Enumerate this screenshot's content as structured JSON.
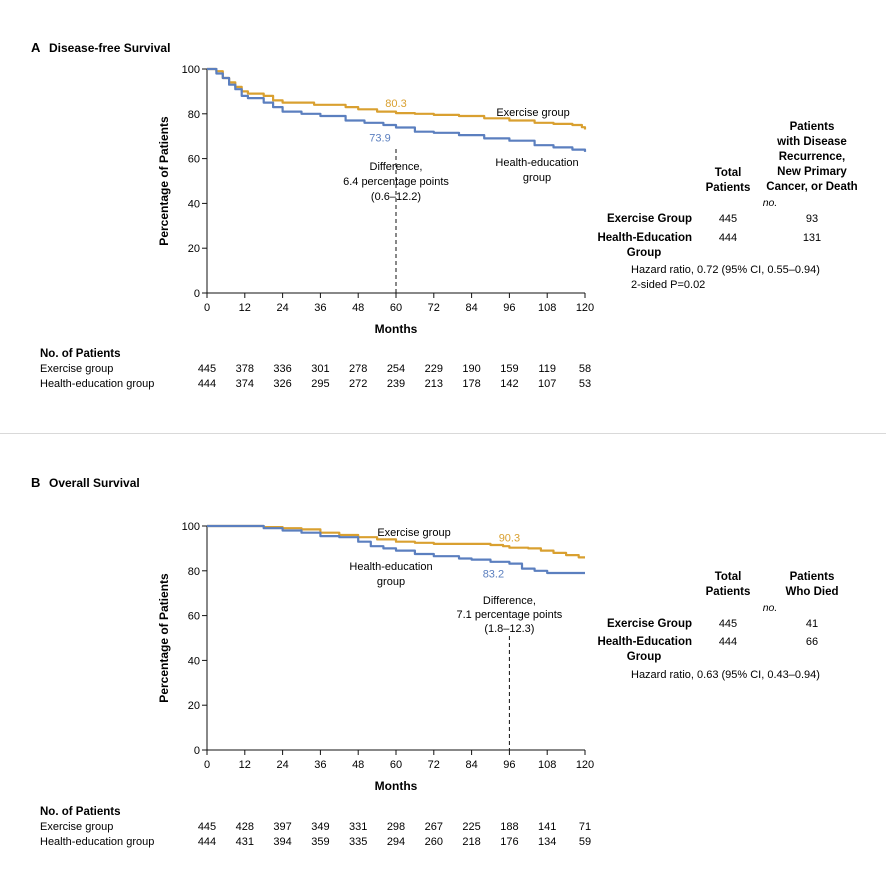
{
  "colors": {
    "exercise": "#D9A030",
    "health": "#5B7FBF",
    "axis": "#111111"
  },
  "chart_data": [
    {
      "type": "line",
      "panel_letter": "A",
      "title": "Disease-free Survival",
      "xlabel": "Months",
      "ylabel": "Percentage of Patients",
      "xlim": [
        0,
        120
      ],
      "ylim": [
        0,
        100
      ],
      "xticks": [
        0,
        12,
        24,
        36,
        48,
        60,
        72,
        84,
        96,
        108,
        120
      ],
      "yticks": [
        0,
        20,
        40,
        60,
        80,
        100
      ],
      "series": [
        {
          "name": "Exercise group",
          "color": "#D9A030",
          "points": [
            [
              0,
              100
            ],
            [
              3,
              99
            ],
            [
              5,
              96
            ],
            [
              7,
              94
            ],
            [
              9,
              92
            ],
            [
              11,
              90
            ],
            [
              13,
              89
            ],
            [
              18,
              88
            ],
            [
              21,
              86
            ],
            [
              24,
              85
            ],
            [
              30,
              85
            ],
            [
              34,
              84
            ],
            [
              44,
              83
            ],
            [
              48,
              82
            ],
            [
              54,
              81
            ],
            [
              60,
              80.3
            ],
            [
              66,
              80
            ],
            [
              72,
              79.5
            ],
            [
              80,
              79
            ],
            [
              88,
              78
            ],
            [
              96,
              77
            ],
            [
              104,
              76
            ],
            [
              110,
              75.5
            ],
            [
              116,
              75
            ],
            [
              119,
              74
            ],
            [
              120,
              73
            ]
          ]
        },
        {
          "name": "Health-education group",
          "color": "#5B7FBF",
          "points": [
            [
              0,
              100
            ],
            [
              3,
              98
            ],
            [
              5,
              96
            ],
            [
              7,
              93
            ],
            [
              9,
              91
            ],
            [
              11,
              88
            ],
            [
              13,
              87
            ],
            [
              18,
              85
            ],
            [
              21,
              83
            ],
            [
              24,
              81
            ],
            [
              30,
              80
            ],
            [
              36,
              79
            ],
            [
              44,
              77
            ],
            [
              50,
              76
            ],
            [
              56,
              75
            ],
            [
              60,
              73.9
            ],
            [
              66,
              72
            ],
            [
              72,
              71.5
            ],
            [
              80,
              70.5
            ],
            [
              88,
              69
            ],
            [
              96,
              68
            ],
            [
              104,
              66
            ],
            [
              110,
              65
            ],
            [
              116,
              64
            ],
            [
              120,
              63
            ]
          ]
        }
      ],
      "annotations": {
        "exercise_value": "80.3",
        "health_value": "73.9",
        "marker_x": 60,
        "diff_line1": "Difference,",
        "diff_line2": "6.4 percentage points",
        "diff_line3": "(0.6–12.2)",
        "exercise_label": "Exercise group",
        "health_label_1": "Health-education",
        "health_label_2": "group"
      },
      "risk_table": {
        "header": "No. of Patients",
        "rows": [
          {
            "label": "Exercise group",
            "values": [
              "445",
              "378",
              "336",
              "301",
              "278",
              "254",
              "229",
              "190",
              "159",
              "119",
              "58"
            ]
          },
          {
            "label": "Health-education group",
            "values": [
              "444",
              "374",
              "326",
              "295",
              "272",
              "239",
              "213",
              "178",
              "142",
              "107",
              "53"
            ]
          }
        ]
      },
      "summary_table": {
        "col1_header": [
          "Total",
          "Patients"
        ],
        "col2_header": [
          "Patients",
          "with Disease",
          "Recurrence,",
          "New Primary",
          "Cancer, or Death"
        ],
        "unit": "no.",
        "rows": [
          {
            "label": [
              "Exercise Group"
            ],
            "col1": "445",
            "col2": "93"
          },
          {
            "label": [
              "Health-Education",
              "Group"
            ],
            "col1": "444",
            "col2": "131"
          }
        ],
        "hazard_line1": "Hazard ratio, 0.72 (95% CI, 0.55–0.94)",
        "hazard_line2": "2-sided P=0.02"
      }
    },
    {
      "type": "line",
      "panel_letter": "B",
      "title": "Overall Survival",
      "xlabel": "Months",
      "ylabel": "Percentage of Patients",
      "xlim": [
        0,
        120
      ],
      "ylim": [
        0,
        100
      ],
      "xticks": [
        0,
        12,
        24,
        36,
        48,
        60,
        72,
        84,
        96,
        108,
        120
      ],
      "yticks": [
        0,
        20,
        40,
        60,
        80,
        100
      ],
      "series": [
        {
          "name": "Exercise group",
          "color": "#D9A030",
          "points": [
            [
              0,
              100
            ],
            [
              12,
              100
            ],
            [
              18,
              99.5
            ],
            [
              24,
              99
            ],
            [
              30,
              98.5
            ],
            [
              36,
              97
            ],
            [
              42,
              96
            ],
            [
              48,
              95
            ],
            [
              54,
              94
            ],
            [
              60,
              93
            ],
            [
              66,
              92.5
            ],
            [
              72,
              92
            ],
            [
              84,
              92
            ],
            [
              90,
              91.5
            ],
            [
              94,
              91
            ],
            [
              96,
              90.3
            ],
            [
              102,
              90
            ],
            [
              106,
              89
            ],
            [
              110,
              88
            ],
            [
              114,
              87
            ],
            [
              118,
              86
            ],
            [
              120,
              86
            ]
          ]
        },
        {
          "name": "Health-education group",
          "color": "#5B7FBF",
          "points": [
            [
              0,
              100
            ],
            [
              12,
              100
            ],
            [
              18,
              99
            ],
            [
              24,
              98
            ],
            [
              30,
              97
            ],
            [
              36,
              95.5
            ],
            [
              42,
              95
            ],
            [
              48,
              93
            ],
            [
              52,
              91
            ],
            [
              56,
              90
            ],
            [
              60,
              89
            ],
            [
              66,
              87.5
            ],
            [
              72,
              86.5
            ],
            [
              80,
              85.5
            ],
            [
              84,
              85
            ],
            [
              90,
              84
            ],
            [
              96,
              83.2
            ],
            [
              100,
              81
            ],
            [
              104,
              80
            ],
            [
              108,
              79
            ],
            [
              114,
              79
            ],
            [
              120,
              79
            ]
          ]
        }
      ],
      "annotations": {
        "exercise_value": "90.3",
        "health_value": "83.2",
        "marker_x": 96,
        "diff_line1": "Difference,",
        "diff_line2": "7.1 percentage points",
        "diff_line3": "(1.8–12.3)",
        "exercise_label": "Exercise group",
        "health_label_1": "Health-education",
        "health_label_2": "group"
      },
      "risk_table": {
        "header": "No. of Patients",
        "rows": [
          {
            "label": "Exercise group",
            "values": [
              "445",
              "428",
              "397",
              "349",
              "331",
              "298",
              "267",
              "225",
              "188",
              "141",
              "71"
            ]
          },
          {
            "label": "Health-education group",
            "values": [
              "444",
              "431",
              "394",
              "359",
              "335",
              "294",
              "260",
              "218",
              "176",
              "134",
              "59"
            ]
          }
        ]
      },
      "summary_table": {
        "col1_header": [
          "Total",
          "Patients"
        ],
        "col2_header": [
          "Patients",
          "Who Died"
        ],
        "unit": "no.",
        "rows": [
          {
            "label": [
              "Exercise Group"
            ],
            "col1": "445",
            "col2": "41"
          },
          {
            "label": [
              "Health-Education",
              "Group"
            ],
            "col1": "444",
            "col2": "66"
          }
        ],
        "hazard_line1": "Hazard ratio, 0.63 (95% CI, 0.43–0.94)"
      }
    }
  ]
}
